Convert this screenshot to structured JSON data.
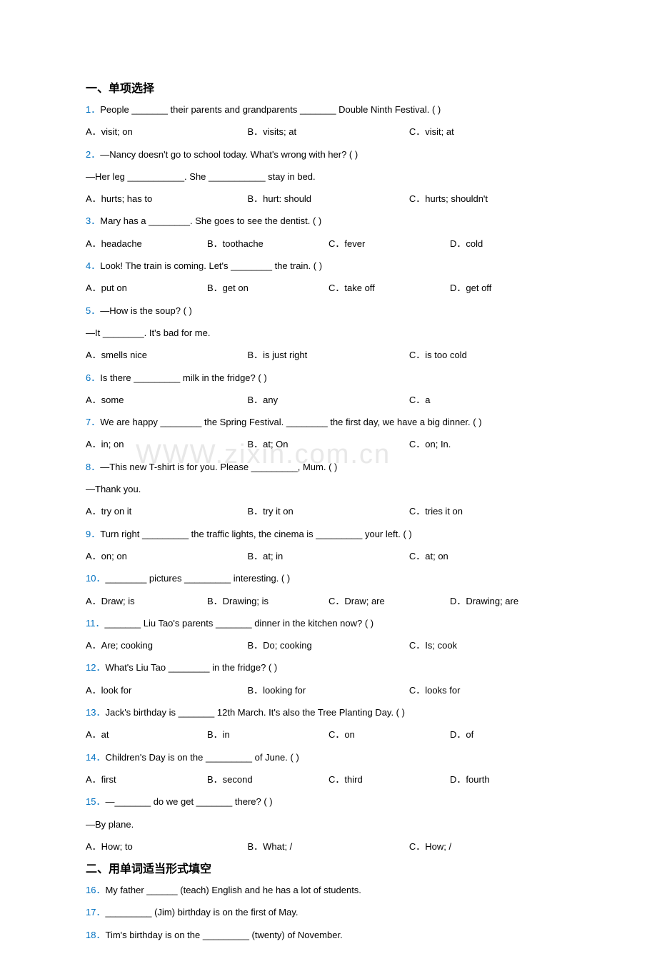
{
  "section1_title": "一、单项选择",
  "section2_title": "二、用单词适当形式填空",
  "questions": [
    {
      "num": "1．",
      "text": "People _______ their parents and grandparents _______ Double Ninth Festival. (    )",
      "options_cols": 3,
      "options": [
        "A．visit; on",
        "B．visits; at",
        "C．visit; at"
      ]
    },
    {
      "num": "2．",
      "text": "—Nancy doesn't go to school today. What's wrong with her? (    )",
      "sub": "—Her leg ___________. She ___________ stay in bed.",
      "options_cols": 3,
      "options": [
        "A．hurts; has to",
        "B．hurt: should",
        "C．hurts; shouldn't"
      ]
    },
    {
      "num": "3．",
      "text": "Mary has a ________. She goes to see the dentist. (    )",
      "options_cols": 4,
      "options": [
        "A．headache",
        "B．toothache",
        "C．fever",
        "D．cold"
      ]
    },
    {
      "num": "4．",
      "text": "Look! The train is coming. Let's ________ the train. (    )",
      "options_cols": 4,
      "options": [
        "A．put on",
        "B．get on",
        "C．take off",
        "D．get off"
      ]
    },
    {
      "num": "5．",
      "text": "—How is the soup? (    )",
      "sub": "—It ________. It's bad for me.",
      "options_cols": 3,
      "options": [
        "A．smells nice",
        "B．is just right",
        "C．is too cold"
      ]
    },
    {
      "num": "6．",
      "text": "Is there _________ milk in the fridge? (     )",
      "options_cols": 3,
      "options": [
        "A．some",
        "B．any",
        "C．a"
      ]
    },
    {
      "num": "7．",
      "text": "We are happy ________ the Spring Festival. ________ the first day, we have a big dinner. (     )",
      "options_cols": 3,
      "options": [
        "A．in; on",
        "B．at; On",
        "C．on; In."
      ]
    },
    {
      "num": "8．",
      "text": "—This new T-shirt is for you. Please _________, Mum. (     )",
      "sub": "—Thank you.",
      "options_cols": 3,
      "options": [
        "A．try on it",
        "B．try it on",
        "C．tries it on"
      ]
    },
    {
      "num": "9．",
      "text": "Turn right _________ the traffic lights, the cinema is _________ your left. (    )",
      "options_cols": 3,
      "options": [
        "A．on; on",
        "B．at; in",
        "C．at; on"
      ]
    },
    {
      "num": "10．",
      "text": "________ pictures _________ interesting. (    )",
      "options_cols": 4,
      "options": [
        "A．Draw; is",
        "B．Drawing; is",
        "C．Draw; are",
        "D．Drawing; are"
      ]
    },
    {
      "num": "11．",
      "text": "_______ Liu Tao's parents _______ dinner in the kitchen now? (    )",
      "options_cols": 3,
      "options": [
        "A．Are; cooking",
        "B．Do; cooking",
        "C．Is; cook"
      ]
    },
    {
      "num": "12．",
      "text": "What's Liu Tao ________ in the fridge? (    )",
      "options_cols": 3,
      "options": [
        "A．look for",
        "B．looking for",
        "C．looks for"
      ]
    },
    {
      "num": "13．",
      "text": "Jack's birthday is _______ 12th March. It's also the Tree Planting Day. (     )",
      "options_cols": 4,
      "options": [
        "A．at",
        "B．in",
        "C．on",
        "D．of"
      ]
    },
    {
      "num": "14．",
      "text": "Children's Day is on the _________ of June. (    )",
      "options_cols": 4,
      "options": [
        "A．first",
        "B．second",
        "C．third",
        "D．fourth"
      ]
    },
    {
      "num": "15．",
      "text": "—_______ do we get _______ there? (     )",
      "sub": "—By plane.",
      "options_cols": 3,
      "options": [
        "A．How; to",
        "B．What; /",
        "C．How; /"
      ]
    }
  ],
  "fill_blanks": [
    {
      "num": "16．",
      "text": "My father ______ (teach) English and he has a lot of students."
    },
    {
      "num": "17．",
      "text": "_________ (Jim) birthday is on the first of May."
    },
    {
      "num": "18．",
      "text": "Tim's birthday is on the _________ (twenty) of November."
    }
  ],
  "watermark": "WWW.zixin.com.cn"
}
